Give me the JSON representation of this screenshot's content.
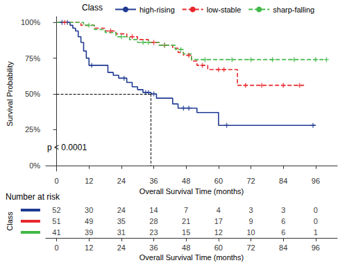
{
  "chart_data": {
    "type": "line",
    "legend_title": "Class",
    "legend": "top",
    "grid": false,
    "xlabel": "Overall Survival Time (months)",
    "ylabel": "Survival Probability",
    "xlim": [
      -4,
      104
    ],
    "xticks": [
      0,
      12,
      24,
      36,
      48,
      60,
      72,
      84,
      96
    ],
    "ylim": [
      -4,
      104
    ],
    "yticks": [
      {
        "value": 0,
        "label": "0%"
      },
      {
        "value": 25,
        "label": "25%"
      },
      {
        "value": 50,
        "label": "50%"
      },
      {
        "value": 75,
        "label": "75%"
      },
      {
        "value": 100,
        "label": "100%"
      }
    ],
    "annotations": [
      {
        "text": "p < 0.0001"
      }
    ],
    "median": {
      "x": 35,
      "y": 50
    },
    "risk_table": {
      "title": "Number at risk",
      "label": "Class",
      "xlabel": "Overall Survival Time (months)",
      "times": [
        0,
        12,
        24,
        36,
        48,
        60,
        72,
        84,
        96
      ]
    },
    "series": [
      {
        "name": "high-rising",
        "color": "#1f3a93",
        "line_style": "solid",
        "marker": "plus",
        "x": [
          0,
          5,
          6,
          7,
          8,
          9,
          10,
          11,
          12,
          19,
          21,
          23,
          26,
          28,
          30,
          32,
          35,
          37,
          43,
          45,
          52,
          60,
          96
        ],
        "values": [
          100,
          98,
          96,
          94,
          90,
          86,
          80,
          75,
          70,
          65,
          63,
          61,
          58,
          55,
          53,
          51,
          50,
          47,
          43,
          40,
          37,
          28,
          28
        ],
        "censored": {
          "x": [
            2,
            4,
            13,
            25,
            33,
            34,
            36,
            47,
            49,
            63,
            95
          ],
          "values": [
            100,
            100,
            70,
            61,
            51,
            51,
            50,
            40,
            40,
            28,
            28
          ]
        },
        "at_risk": [
          52,
          30,
          24,
          14,
          7,
          4,
          3,
          3,
          0
        ]
      },
      {
        "name": "low-stable",
        "color": "#e8262b",
        "line_style": "dashed",
        "marker": "plus",
        "x": [
          0,
          9,
          14,
          18,
          22,
          26,
          30,
          34,
          38,
          43,
          45,
          47,
          50,
          52,
          56,
          67,
          92
        ],
        "values": [
          100,
          98,
          96,
          94,
          92,
          90,
          88,
          86,
          84,
          82,
          79,
          77,
          73,
          70,
          67,
          56,
          56
        ],
        "censored": {
          "x": [
            3,
            20,
            28,
            36,
            40,
            49,
            54,
            60,
            62,
            70,
            76,
            84,
            90
          ],
          "values": [
            100,
            94,
            90,
            86,
            84,
            77,
            70,
            67,
            67,
            56,
            56,
            56,
            56
          ]
        },
        "at_risk": [
          51,
          49,
          35,
          28,
          21,
          17,
          9,
          6,
          0
        ]
      },
      {
        "name": "sharp-falling",
        "color": "#41b847",
        "line_style": "dashed",
        "marker": "plus",
        "x": [
          0,
          10,
          14,
          18,
          22,
          27,
          30,
          38,
          44,
          47,
          50,
          100
        ],
        "values": [
          100,
          98,
          95,
          93,
          90,
          88,
          86,
          84,
          81,
          78,
          74,
          74
        ],
        "censored": {
          "x": [
            12,
            24,
            32,
            34,
            40,
            46,
            55,
            65,
            72,
            80,
            88,
            96,
            100
          ],
          "values": [
            98,
            90,
            86,
            86,
            84,
            81,
            74,
            74,
            74,
            74,
            74,
            74,
            74
          ]
        },
        "at_risk": [
          41,
          39,
          31,
          23,
          15,
          12,
          10,
          6,
          1
        ]
      }
    ]
  }
}
